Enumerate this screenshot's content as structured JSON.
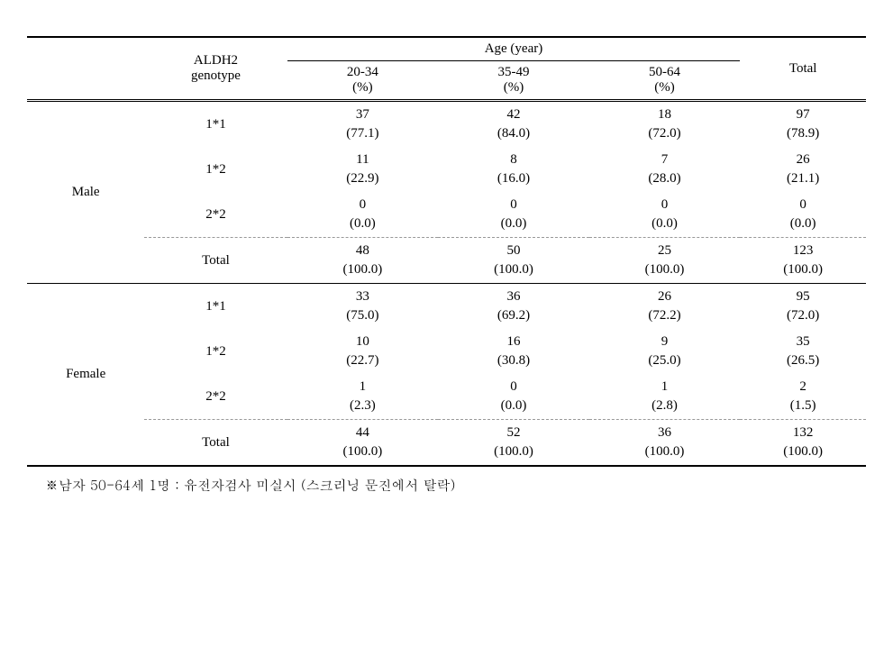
{
  "table": {
    "header": {
      "sex_label": "",
      "genotype_label": "ALDH2\ngenotype",
      "age_group_label": "Age (year)",
      "total_label": "Total",
      "age_columns": [
        {
          "range": "20-34",
          "unit": "(%)"
        },
        {
          "range": "35-49",
          "unit": "(%)"
        },
        {
          "range": "50-64",
          "unit": "(%)"
        }
      ]
    },
    "groups": [
      {
        "label": "Male",
        "rows": [
          {
            "genotype": "1*1",
            "age1_n": "37",
            "age1_p": "(77.1)",
            "age2_n": "42",
            "age2_p": "(84.0)",
            "age3_n": "18",
            "age3_p": "(72.0)",
            "total_n": "97",
            "total_p": "(78.9)"
          },
          {
            "genotype": "1*2",
            "age1_n": "11",
            "age1_p": "(22.9)",
            "age2_n": "8",
            "age2_p": "(16.0)",
            "age3_n": "7",
            "age3_p": "(28.0)",
            "total_n": "26",
            "total_p": "(21.1)"
          },
          {
            "genotype": "2*2",
            "age1_n": "0",
            "age1_p": "(0.0)",
            "age2_n": "0",
            "age2_p": "(0.0)",
            "age3_n": "0",
            "age3_p": "(0.0)",
            "total_n": "0",
            "total_p": "(0.0)"
          },
          {
            "genotype": "Total",
            "age1_n": "48",
            "age1_p": "(100.0)",
            "age2_n": "50",
            "age2_p": "(100.0)",
            "age3_n": "25",
            "age3_p": "(100.0)",
            "total_n": "123",
            "total_p": "(100.0)"
          }
        ]
      },
      {
        "label": "Female",
        "rows": [
          {
            "genotype": "1*1",
            "age1_n": "33",
            "age1_p": "(75.0)",
            "age2_n": "36",
            "age2_p": "(69.2)",
            "age3_n": "26",
            "age3_p": "(72.2)",
            "total_n": "95",
            "total_p": "(72.0)"
          },
          {
            "genotype": "1*2",
            "age1_n": "10",
            "age1_p": "(22.7)",
            "age2_n": "16",
            "age2_p": "(30.8)",
            "age3_n": "9",
            "age3_p": "(25.0)",
            "total_n": "35",
            "total_p": "(26.5)"
          },
          {
            "genotype": "2*2",
            "age1_n": "1",
            "age1_p": "(2.3)",
            "age2_n": "0",
            "age2_p": "(0.0)",
            "age3_n": "1",
            "age3_p": "(2.8)",
            "total_n": "2",
            "total_p": "(1.5)"
          },
          {
            "genotype": "Total",
            "age1_n": "44",
            "age1_p": "(100.0)",
            "age2_n": "52",
            "age2_p": "(100.0)",
            "age3_n": "36",
            "age3_p": "(100.0)",
            "total_n": "132",
            "total_p": "(100.0)"
          }
        ]
      }
    ]
  },
  "footnote": "※남자 50-64세 1명 : 유전자검사 미실시 (스크리닝 문진에서 탈락)"
}
